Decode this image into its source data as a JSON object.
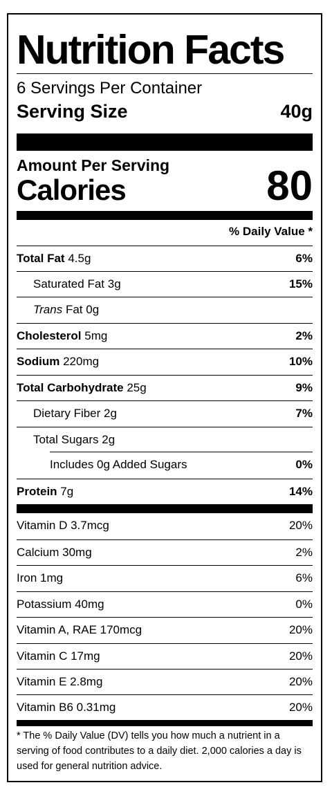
{
  "label": {
    "title": "Nutrition Facts",
    "servings_per_container": "6 Servings Per Container",
    "serving_size_label": "Serving Size",
    "serving_size_value": "40g",
    "amount_per_serving": "Amount Per Serving",
    "calories_label": "Calories",
    "calories_value": "80",
    "daily_value_header": "% Daily Value *"
  },
  "nutrients": [
    {
      "name": "Total Fat",
      "amount": "4.5g",
      "dv": "6%"
    },
    {
      "name": "Saturated Fat",
      "amount": "3g",
      "dv": "15%"
    },
    {
      "name_italic": "Trans",
      "name": "Fat",
      "amount": "0g",
      "dv": ""
    },
    {
      "name": "Cholesterol",
      "amount": "5mg",
      "dv": "2%"
    },
    {
      "name": "Sodium",
      "amount": "220mg",
      "dv": "10%"
    },
    {
      "name": "Total Carbohydrate",
      "amount": "25g",
      "dv": "9%"
    },
    {
      "name": "Dietary Fiber",
      "amount": "2g",
      "dv": "7%"
    },
    {
      "name": "Total Sugars",
      "amount": "2g",
      "dv": ""
    },
    {
      "name": "Includes 0g Added Sugars",
      "amount": "",
      "dv": "0%"
    },
    {
      "name": "Protein",
      "amount": "7g",
      "dv": "14%"
    }
  ],
  "vitamins": [
    {
      "label": "Vitamin D 3.7mcg",
      "dv": "20%"
    },
    {
      "label": "Calcium 30mg",
      "dv": "2%"
    },
    {
      "label": "Iron 1mg",
      "dv": "6%"
    },
    {
      "label": "Potassium 40mg",
      "dv": "0%"
    },
    {
      "label": "Vitamin A, RAE 170mcg",
      "dv": "20%"
    },
    {
      "label": "Vitamin C 17mg",
      "dv": "20%"
    },
    {
      "label": "Vitamin E 2.8mg",
      "dv": "20%"
    },
    {
      "label": "Vitamin B6 0.31mg",
      "dv": "20%"
    }
  ],
  "footnote": "* The % Daily Value (DV) tells you how much a nutrient in a serving of food contributes to a daily diet. 2,000 calories a day is used for general nutrition advice."
}
